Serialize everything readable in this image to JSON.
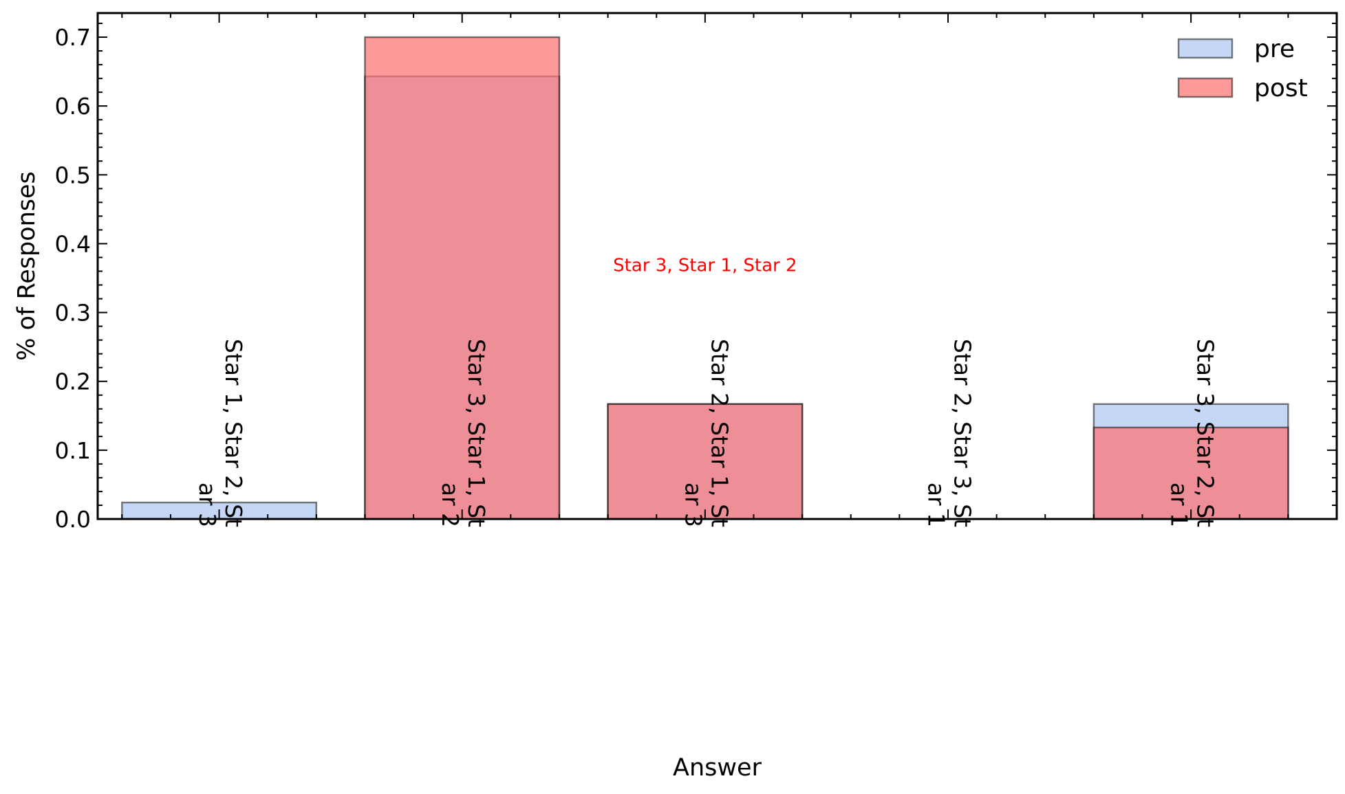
{
  "chart_data": {
    "type": "bar",
    "categories": [
      "Star 1, Star 2, Star 3",
      "Star 3, Star 1, Star 2",
      "Star 2, Star 1, Star 3",
      "Star 2, Star 3, Star 1",
      "Star 3, Star 2, Star 1"
    ],
    "category_label_lines": [
      [
        "Star 1, Star 2, St",
        "ar 3"
      ],
      [
        "Star 3, Star 1, St",
        "ar 2"
      ],
      [
        "Star 2, Star 1, St",
        "ar 3"
      ],
      [
        "Star 2, Star 3, St",
        "ar 1"
      ],
      [
        "Star 3, Star 2, St",
        "ar 1"
      ]
    ],
    "series": [
      {
        "name": "pre",
        "values": [
          0.024,
          0.643,
          0.167,
          0.0,
          0.167
        ],
        "color": "#aec6f2"
      },
      {
        "name": "post",
        "values": [
          0.0,
          0.7,
          0.167,
          0.0,
          0.133
        ],
        "color": "#ff6f6f"
      }
    ],
    "xlabel": "Answer",
    "ylabel": "% of Responses",
    "ylim": [
      0,
      0.735
    ],
    "yticks": [
      0.0,
      0.1,
      0.2,
      0.3,
      0.4,
      0.5,
      0.6,
      0.7
    ],
    "ytick_labels": [
      "0.0",
      "0.1",
      "0.2",
      "0.3",
      "0.4",
      "0.5",
      "0.6",
      "0.7"
    ],
    "legend_position": "top-right",
    "grid": false,
    "annotation": {
      "text": "Star 3, Star 1, Star 2",
      "color": "#ff0000",
      "x": 2.0,
      "y": 0.36
    }
  }
}
